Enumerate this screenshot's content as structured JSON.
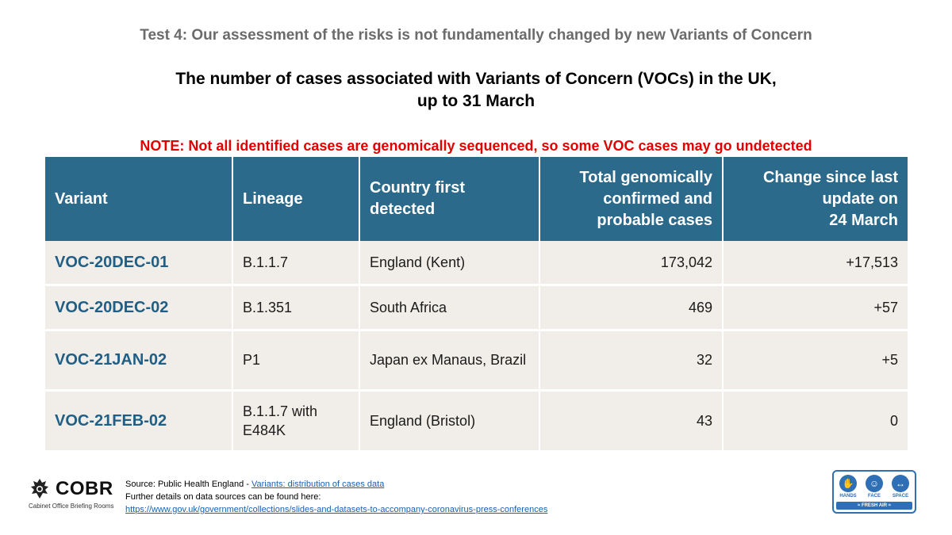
{
  "header": {
    "test_title": "Test 4: Our assessment of the risks is not fundamentally changed by new Variants of Concern",
    "main_title_line1": "The number of cases associated with Variants of Concern (VOCs) in the UK,",
    "main_title_line2": "up to 31 March",
    "note": "NOTE: Not all identified cases are genomically sequenced, so some VOC cases may go undetected"
  },
  "table": {
    "headers": {
      "variant": "Variant",
      "lineage": "Lineage",
      "country_line1": "Country first",
      "country_line2": "detected",
      "total_line1": "Total genomically",
      "total_line2": "confirmed and",
      "total_line3": "probable cases",
      "change_line1": "Change since last",
      "change_line2": "update on",
      "change_line3": "24 March"
    },
    "rows": [
      {
        "variant": "VOC-20DEC-01",
        "lineage": "B.1.1.7",
        "country": "England (Kent)",
        "total": "173,042",
        "change": "+17,513"
      },
      {
        "variant": "VOC-20DEC-02",
        "lineage": "B.1.351",
        "country": "South Africa",
        "total": "469",
        "change": "+57"
      },
      {
        "variant": "VOC-21JAN-02",
        "lineage": "P1",
        "country": "Japan ex Manaus, Brazil",
        "total": "32",
        "change": "+5"
      },
      {
        "variant": "VOC-21FEB-02",
        "lineage": "B.1.1.7 with E484K",
        "country": "England (Bristol)",
        "total": "43",
        "change": "0"
      }
    ]
  },
  "footer": {
    "cobr_name": "COBR",
    "cobr_subtitle": "Cabinet Office Briefing Rooms",
    "source_prefix": "Source: Public Health England - ",
    "source_link": "Variants: distribution of cases data",
    "details_text": "Further details on data sources can be found here:",
    "details_link": "https://www.gov.uk/government/collections/slides-and-datasets-to-accompany-coronavirus-press-conferences"
  },
  "campaign": {
    "hands": "HANDS",
    "face": "FACE",
    "space": "SPACE",
    "fresh_air": "FRESH AIR"
  },
  "colors": {
    "header_bg": "#2c6a8b",
    "row_bg": "#f1eee9",
    "variant_text": "#1f5f86",
    "note_red": "#e00000"
  }
}
